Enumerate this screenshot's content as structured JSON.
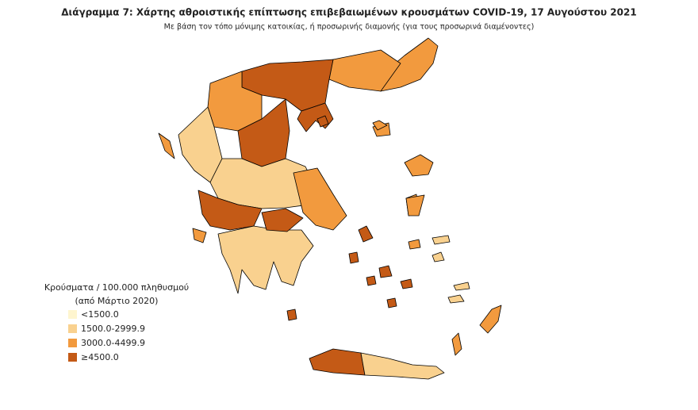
{
  "title": "Διάγραμμα 7: Χάρτης αθροιστικής επίπτωσης επιβεβαιωμένων κρουσμάτων COVID-19, 17 Αυγούστου 2021",
  "subtitle": "Με βάση τον τόπο μόνιμης κατοικίας, ή προσωρινής διαμονής (για τους προσωρινά διαμένοντες)",
  "legend": {
    "title_lines": [
      "Κρούσματα / 100.000 πληθυσμού",
      "(από Μάρτιο 2020)"
    ],
    "items": [
      {
        "label": "<1500.0",
        "color": "#fef5cf"
      },
      {
        "label": "1500.0-2999.9",
        "color": "#f9d18f"
      },
      {
        "label": "3000.0-4499.9",
        "color": "#f29a3e"
      },
      {
        "label": "≥4500.0",
        "color": "#c45a16"
      }
    ]
  }
}
